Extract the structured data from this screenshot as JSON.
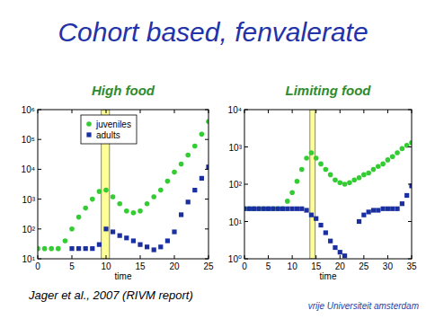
{
  "slide": {
    "title": "Cohort based, fenvalerate",
    "citation": "Jager et al., 2007 (RIVM report)",
    "logo": "vrije Universiteit amsterdam"
  },
  "chart_data": [
    {
      "type": "scatter",
      "title": "High food",
      "x_label": "time",
      "log": "y",
      "legend": "upper left",
      "x": [
        0,
        1,
        2,
        3,
        4,
        5,
        6,
        7,
        8,
        9,
        10,
        11,
        12,
        13,
        14,
        15,
        16,
        17,
        18,
        19,
        20,
        21,
        22,
        23,
        24,
        25
      ],
      "series": [
        {
          "name": "juveniles",
          "color": "#33cc33",
          "marker": "circle",
          "values": [
            22,
            22,
            22,
            22,
            40,
            100,
            250,
            500,
            1000,
            1800,
            2000,
            1200,
            700,
            400,
            350,
            400,
            700,
            1200,
            2000,
            4000,
            8000,
            15000,
            30000,
            60000,
            150000,
            400000
          ]
        },
        {
          "name": "adults",
          "color": "#1a2fa0",
          "marker": "square",
          "values": [
            null,
            null,
            null,
            null,
            null,
            22,
            22,
            22,
            22,
            30,
            100,
            80,
            60,
            50,
            40,
            30,
            25,
            20,
            25,
            40,
            80,
            300,
            800,
            2000,
            5000,
            12000
          ]
        }
      ],
      "shaded_x": [
        9.3,
        10.5
      ],
      "xlim": [
        0,
        25
      ],
      "xticks": [
        0,
        5,
        10,
        15,
        20,
        25
      ],
      "ylim": [
        10,
        1000000
      ],
      "yticks": [
        {
          "value": 10,
          "label": "10¹"
        },
        {
          "value": 100,
          "label": "10²"
        },
        {
          "value": 1000,
          "label": "10³"
        },
        {
          "value": 10000,
          "label": "10⁴"
        },
        {
          "value": 100000,
          "label": "10⁵"
        },
        {
          "value": 1000000,
          "label": "10⁶"
        }
      ]
    },
    {
      "type": "scatter",
      "title": "Limiting food",
      "x_label": "time",
      "log": "y",
      "x": [
        0,
        1,
        2,
        3,
        4,
        5,
        6,
        7,
        8,
        9,
        10,
        11,
        12,
        13,
        14,
        15,
        16,
        17,
        18,
        19,
        20,
        21,
        22,
        23,
        24,
        25,
        26,
        27,
        28,
        29,
        30,
        31,
        32,
        33,
        34,
        35
      ],
      "series": [
        {
          "name": "juveniles",
          "color": "#33cc33",
          "marker": "circle",
          "values": [
            22,
            22,
            22,
            22,
            22,
            22,
            22,
            22,
            22,
            35,
            60,
            120,
            250,
            500,
            700,
            500,
            350,
            250,
            180,
            130,
            110,
            100,
            110,
            130,
            150,
            180,
            200,
            250,
            300,
            350,
            450,
            550,
            700,
            900,
            1100,
            1300
          ]
        },
        {
          "name": "adults",
          "color": "#1a2fa0",
          "marker": "square",
          "values": [
            22,
            22,
            22,
            22,
            22,
            22,
            22,
            22,
            22,
            22,
            22,
            22,
            22,
            20,
            15,
            12,
            8,
            5,
            3,
            2,
            1.5,
            1.2,
            null,
            null,
            10,
            15,
            18,
            20,
            20,
            22,
            22,
            22,
            22,
            30,
            50,
            90
          ]
        }
      ],
      "shaded_x": [
        13.7,
        14.8
      ],
      "xlim": [
        0,
        35
      ],
      "xticks": [
        0,
        5,
        10,
        15,
        20,
        25,
        30,
        35
      ],
      "ylim": [
        1,
        10000
      ],
      "yticks": [
        {
          "value": 1,
          "label": "10⁰"
        },
        {
          "value": 10,
          "label": "10¹"
        },
        {
          "value": 100,
          "label": "10²"
        },
        {
          "value": 1000,
          "label": "10³"
        },
        {
          "value": 10000,
          "label": "10⁴"
        }
      ]
    }
  ]
}
